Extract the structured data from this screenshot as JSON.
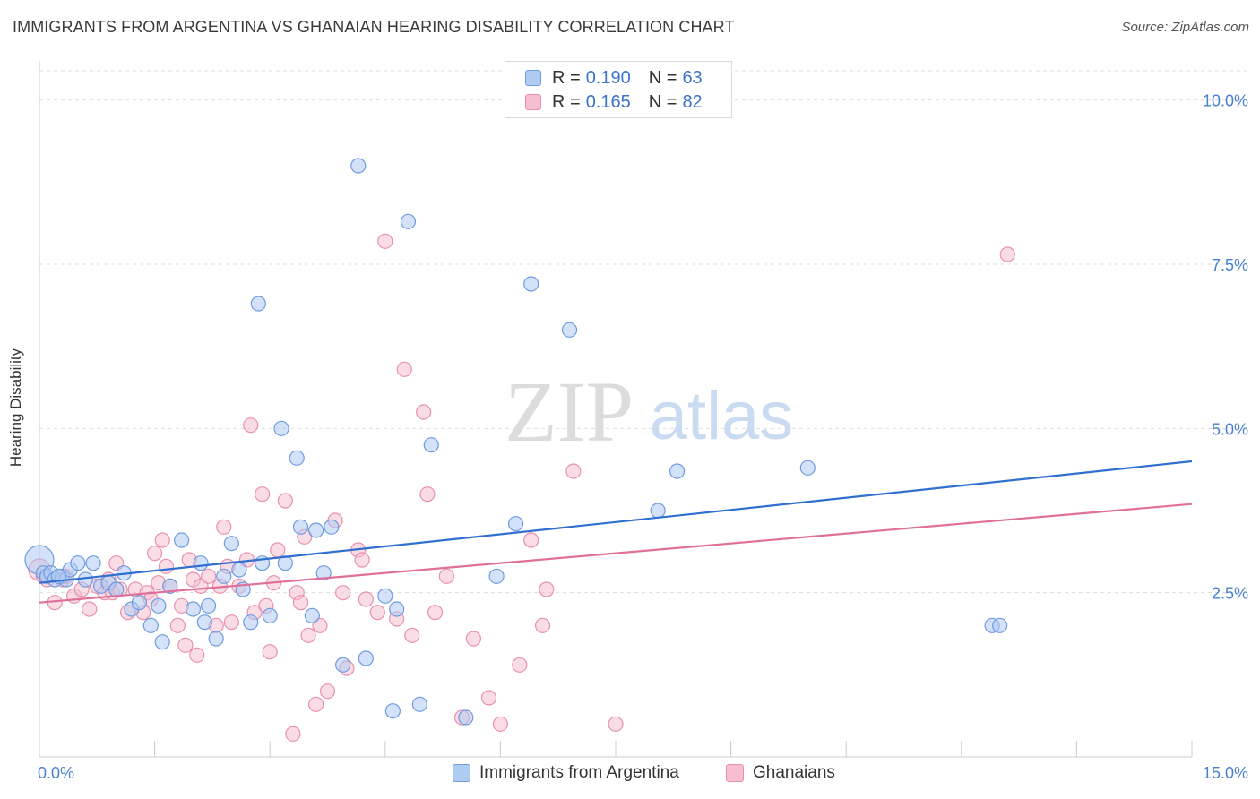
{
  "title": "IMMIGRANTS FROM ARGENTINA VS GHANAIAN HEARING DISABILITY CORRELATION CHART",
  "source": "Source: ZipAtlas.com",
  "watermark": {
    "zip": "ZIP",
    "atlas": "atlas"
  },
  "legend": {
    "series1": {
      "r_label": "R = ",
      "r_value": "0.190",
      "n_label": "N = ",
      "n_value": "63"
    },
    "series2": {
      "r_label": "R = ",
      "r_value": "0.165",
      "n_label": "N = ",
      "n_value": "82"
    }
  },
  "colors": {
    "blue_fill": "#aecbf2",
    "blue_stroke": "#6f9be0",
    "blue_line": "#2f6fd0",
    "pink_fill": "#f6bfd0",
    "pink_stroke": "#e890ae",
    "pink_line": "#e0709a",
    "tick_text": "#4a7fcf",
    "grid": "#dddddd"
  },
  "chart_data": {
    "type": "scatter",
    "title": "IMMIGRANTS FROM ARGENTINA VS GHANAIAN HEARING DISABILITY CORRELATION CHART",
    "xlabel": "",
    "ylabel": "Hearing Disability",
    "xlim": [
      0,
      15
    ],
    "ylim": [
      0,
      10.5
    ],
    "x_tick_labels": [
      "0.0%",
      "15.0%"
    ],
    "y_ticks": [
      2.5,
      5.0,
      7.5,
      10.0
    ],
    "y_tick_labels": [
      "2.5%",
      "5.0%",
      "7.5%",
      "10.0%"
    ],
    "grid": true,
    "series": [
      {
        "name": "Immigrants from Argentina",
        "color": "#aecbf2",
        "trend": {
          "x": [
            0,
            15
          ],
          "y": [
            2.65,
            4.5
          ]
        },
        "points": [
          [
            0.0,
            3.0
          ],
          [
            0.05,
            2.8
          ],
          [
            0.1,
            2.75
          ],
          [
            0.15,
            2.8
          ],
          [
            0.2,
            2.7
          ],
          [
            0.3,
            2.75
          ],
          [
            0.35,
            2.7
          ],
          [
            0.4,
            2.85
          ],
          [
            0.5,
            2.95
          ],
          [
            0.6,
            2.7
          ],
          [
            0.7,
            2.95
          ],
          [
            0.8,
            2.6
          ],
          [
            0.9,
            2.65
          ],
          [
            1.0,
            2.55
          ],
          [
            1.2,
            2.25
          ],
          [
            1.3,
            2.35
          ],
          [
            1.45,
            2.0
          ],
          [
            1.55,
            2.3
          ],
          [
            1.6,
            1.75
          ],
          [
            1.7,
            2.6
          ],
          [
            1.85,
            3.3
          ],
          [
            2.0,
            2.25
          ],
          [
            2.1,
            2.95
          ],
          [
            2.15,
            2.05
          ],
          [
            2.3,
            1.8
          ],
          [
            2.4,
            2.75
          ],
          [
            2.5,
            3.25
          ],
          [
            2.6,
            2.85
          ],
          [
            2.65,
            2.55
          ],
          [
            2.75,
            2.05
          ],
          [
            2.85,
            6.9
          ],
          [
            2.9,
            2.95
          ],
          [
            3.0,
            2.15
          ],
          [
            3.15,
            5.0
          ],
          [
            3.2,
            2.95
          ],
          [
            3.35,
            4.55
          ],
          [
            3.4,
            3.5
          ],
          [
            3.55,
            2.15
          ],
          [
            3.7,
            2.8
          ],
          [
            3.8,
            3.5
          ],
          [
            3.95,
            1.4
          ],
          [
            4.15,
            9.0
          ],
          [
            4.25,
            1.5
          ],
          [
            4.5,
            2.45
          ],
          [
            4.6,
            0.7
          ],
          [
            4.8,
            8.15
          ],
          [
            4.95,
            0.8
          ],
          [
            5.1,
            4.75
          ],
          [
            5.55,
            0.6
          ],
          [
            5.95,
            2.75
          ],
          [
            6.2,
            3.55
          ],
          [
            6.4,
            7.2
          ],
          [
            6.9,
            6.5
          ],
          [
            8.05,
            3.75
          ],
          [
            8.3,
            4.35
          ],
          [
            10.0,
            4.4
          ],
          [
            12.4,
            2.0
          ],
          [
            12.5,
            2.0
          ],
          [
            0.25,
            2.75
          ],
          [
            1.1,
            2.8
          ],
          [
            2.2,
            2.3
          ],
          [
            3.6,
            3.45
          ],
          [
            4.65,
            2.25
          ]
        ]
      },
      {
        "name": "Ghanaians",
        "color": "#f6bfd0",
        "trend": {
          "x": [
            0,
            15
          ],
          "y": [
            2.35,
            3.85
          ]
        },
        "points": [
          [
            0.0,
            2.85
          ],
          [
            0.05,
            2.75
          ],
          [
            0.1,
            2.7
          ],
          [
            0.2,
            2.35
          ],
          [
            0.3,
            2.7
          ],
          [
            0.35,
            2.75
          ],
          [
            0.45,
            2.45
          ],
          [
            0.55,
            2.55
          ],
          [
            0.65,
            2.25
          ],
          [
            0.75,
            2.6
          ],
          [
            0.85,
            2.5
          ],
          [
            0.95,
            2.5
          ],
          [
            1.0,
            2.95
          ],
          [
            1.05,
            2.55
          ],
          [
            1.15,
            2.2
          ],
          [
            1.25,
            2.55
          ],
          [
            1.35,
            2.2
          ],
          [
            1.4,
            2.5
          ],
          [
            1.45,
            2.4
          ],
          [
            1.5,
            3.1
          ],
          [
            1.6,
            3.3
          ],
          [
            1.65,
            2.9
          ],
          [
            1.7,
            2.6
          ],
          [
            1.8,
            2.0
          ],
          [
            1.85,
            2.3
          ],
          [
            1.9,
            1.7
          ],
          [
            1.95,
            3.0
          ],
          [
            2.0,
            2.7
          ],
          [
            2.05,
            1.55
          ],
          [
            2.1,
            2.6
          ],
          [
            2.2,
            2.75
          ],
          [
            2.3,
            2.0
          ],
          [
            2.35,
            2.6
          ],
          [
            2.4,
            3.5
          ],
          [
            2.5,
            2.05
          ],
          [
            2.6,
            2.6
          ],
          [
            2.7,
            3.0
          ],
          [
            2.75,
            5.05
          ],
          [
            2.8,
            2.2
          ],
          [
            2.9,
            4.0
          ],
          [
            2.95,
            2.3
          ],
          [
            3.0,
            1.6
          ],
          [
            3.05,
            2.65
          ],
          [
            3.1,
            3.15
          ],
          [
            3.2,
            3.9
          ],
          [
            3.3,
            0.35
          ],
          [
            3.35,
            2.5
          ],
          [
            3.45,
            3.35
          ],
          [
            3.5,
            1.85
          ],
          [
            3.6,
            0.8
          ],
          [
            3.65,
            2.0
          ],
          [
            3.75,
            1.0
          ],
          [
            3.85,
            3.6
          ],
          [
            3.95,
            2.5
          ],
          [
            4.0,
            1.35
          ],
          [
            4.15,
            3.15
          ],
          [
            4.2,
            3.0
          ],
          [
            4.4,
            2.2
          ],
          [
            4.5,
            7.85
          ],
          [
            4.65,
            2.1
          ],
          [
            4.75,
            5.9
          ],
          [
            4.85,
            1.85
          ],
          [
            5.0,
            5.25
          ],
          [
            5.05,
            4.0
          ],
          [
            5.15,
            2.2
          ],
          [
            5.3,
            2.75
          ],
          [
            5.5,
            0.6
          ],
          [
            5.65,
            1.8
          ],
          [
            5.85,
            0.9
          ],
          [
            6.0,
            0.5
          ],
          [
            6.25,
            1.4
          ],
          [
            6.4,
            3.3
          ],
          [
            6.55,
            2.0
          ],
          [
            6.6,
            2.55
          ],
          [
            6.95,
            4.35
          ],
          [
            7.5,
            0.5
          ],
          [
            12.6,
            7.65
          ],
          [
            1.55,
            2.65
          ],
          [
            2.45,
            2.9
          ],
          [
            3.4,
            2.35
          ],
          [
            4.25,
            2.4
          ],
          [
            0.9,
            2.7
          ]
        ]
      }
    ]
  },
  "bottom_legend": {
    "item1": "Immigrants from Argentina",
    "item2": "Ghanaians"
  }
}
